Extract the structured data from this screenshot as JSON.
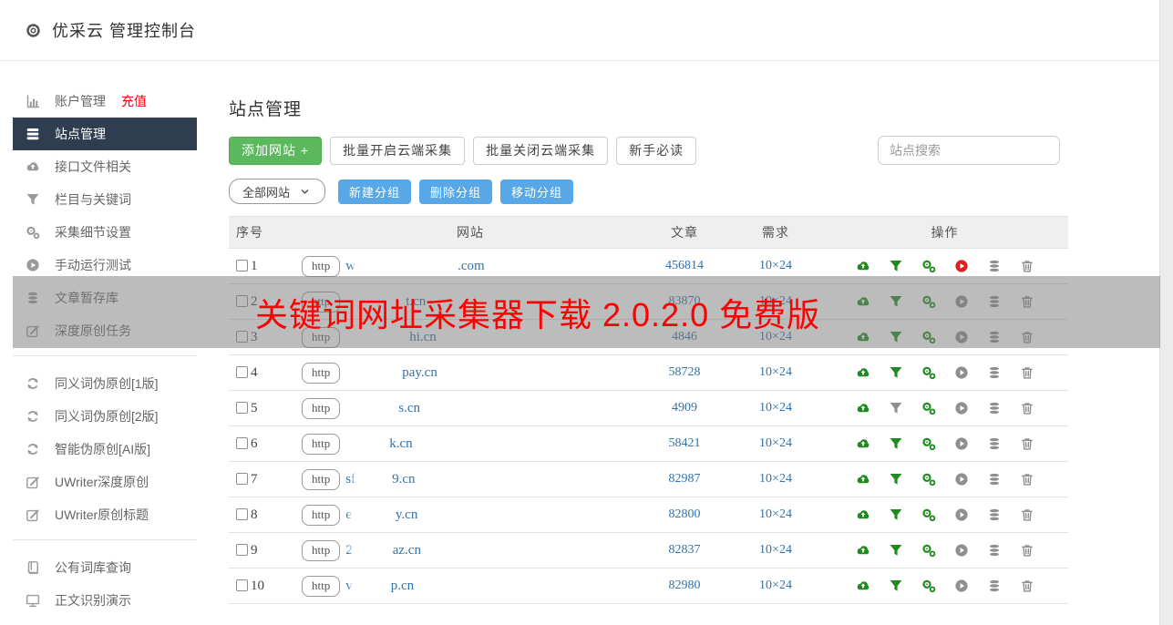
{
  "header": {
    "title": "优采云 管理控制台",
    "icon": "gear-icon"
  },
  "sidebar": {
    "sections": [
      {
        "items": [
          {
            "icon": "bar-chart-icon",
            "label": "账户管理",
            "badge": "充值"
          },
          {
            "icon": "list-icon",
            "label": "站点管理",
            "active": true
          },
          {
            "icon": "cloud-upload-icon",
            "label": "接口文件相关"
          },
          {
            "icon": "filter-icon",
            "label": "栏目与关键词"
          },
          {
            "icon": "gears-icon",
            "label": "采集细节设置"
          },
          {
            "icon": "play-icon",
            "label": "手动运行测试"
          },
          {
            "icon": "database-icon",
            "label": "文章暂存库"
          },
          {
            "icon": "edit-icon",
            "label": "深度原创任务"
          }
        ]
      },
      {
        "items": [
          {
            "icon": "refresh-icon",
            "label": "同义词伪原创[1版]"
          },
          {
            "icon": "refresh-icon",
            "label": "同义词伪原创[2版]"
          },
          {
            "icon": "refresh-icon",
            "label": "智能伪原创[AI版]"
          },
          {
            "icon": "edit-icon",
            "label": "UWriter深度原创"
          },
          {
            "icon": "edit-icon",
            "label": "UWriter原创标题"
          }
        ]
      },
      {
        "items": [
          {
            "icon": "book-icon",
            "label": "公有词库查询"
          },
          {
            "icon": "monitor-icon",
            "label": "正文识别演示"
          }
        ]
      }
    ]
  },
  "main": {
    "title": "站点管理",
    "toolbar": {
      "add_site": "添加网站 +",
      "batch_open": "批量开启云端采集",
      "batch_close": "批量关闭云端采集",
      "guide": "新手必读",
      "group_select": "全部网站",
      "new_group": "新建分组",
      "delete_group": "删除分组",
      "move_group": "移动分组",
      "search_placeholder": "站点搜索"
    },
    "table": {
      "headers": [
        "序号",
        "网站",
        "文章",
        "需求",
        "操作"
      ],
      "http_label": "http",
      "action_icons": [
        "cloud-upload-icon",
        "filter-icon",
        "gears-icon",
        "play-icon",
        "database-icon",
        "trash-icon"
      ],
      "rows": [
        {
          "index": "1",
          "domain_prefix": "w",
          "domain_suffix": ".com",
          "mask_w": 112,
          "articles": "456814",
          "demand": "10×24",
          "filter_on": true,
          "running": true
        },
        {
          "index": "2",
          "domain_prefix": "",
          "domain_suffix": "t.cn",
          "mask_w": 66,
          "articles": "83870",
          "demand": "10×24",
          "filter_on": true,
          "running": false
        },
        {
          "index": "3",
          "domain_prefix": "",
          "domain_suffix": "hi.cn",
          "mask_w": 70,
          "articles": "4846",
          "demand": "10×24",
          "filter_on": true,
          "running": false
        },
        {
          "index": "4",
          "domain_prefix": "",
          "domain_suffix": "pay.cn",
          "mask_w": 62,
          "articles": "58728",
          "demand": "10×24",
          "filter_on": true,
          "running": false
        },
        {
          "index": "5",
          "domain_prefix": "",
          "domain_suffix": "s.cn",
          "mask_w": 58,
          "articles": "4909",
          "demand": "10×24",
          "filter_on": false,
          "running": false
        },
        {
          "index": "6",
          "domain_prefix": "",
          "domain_suffix": "k.cn",
          "mask_w": 48,
          "articles": "58421",
          "demand": "10×24",
          "filter_on": true,
          "running": false
        },
        {
          "index": "7",
          "domain_prefix": "sf",
          "domain_suffix": "9.cn",
          "mask_w": 40,
          "articles": "82987",
          "demand": "10×24",
          "filter_on": true,
          "running": false
        },
        {
          "index": "8",
          "domain_prefix": "e",
          "domain_suffix": "y.cn",
          "mask_w": 48,
          "articles": "82800",
          "demand": "10×24",
          "filter_on": true,
          "running": false
        },
        {
          "index": "9",
          "domain_prefix": "2",
          "domain_suffix": "az.cn",
          "mask_w": 44,
          "articles": "82837",
          "demand": "10×24",
          "filter_on": true,
          "running": false
        },
        {
          "index": "10",
          "domain_prefix": "v",
          "domain_suffix": "p.cn",
          "mask_w": 42,
          "articles": "82980",
          "demand": "10×24",
          "filter_on": true,
          "running": false
        }
      ]
    }
  },
  "overlay": {
    "text": "关键词网址采集器下载 2.0.2.0 免费版"
  },
  "colors": {
    "green": "#5cb85c",
    "green_border": "#4cae4c",
    "blue": "#58a8e8",
    "link": "#3173ad",
    "red": "#fe0000",
    "nav_active": "#2e3d4f",
    "icon_green": "#1f8b1f",
    "icon_red": "#df1f1f",
    "icon_gray": "#8f8f8f"
  }
}
